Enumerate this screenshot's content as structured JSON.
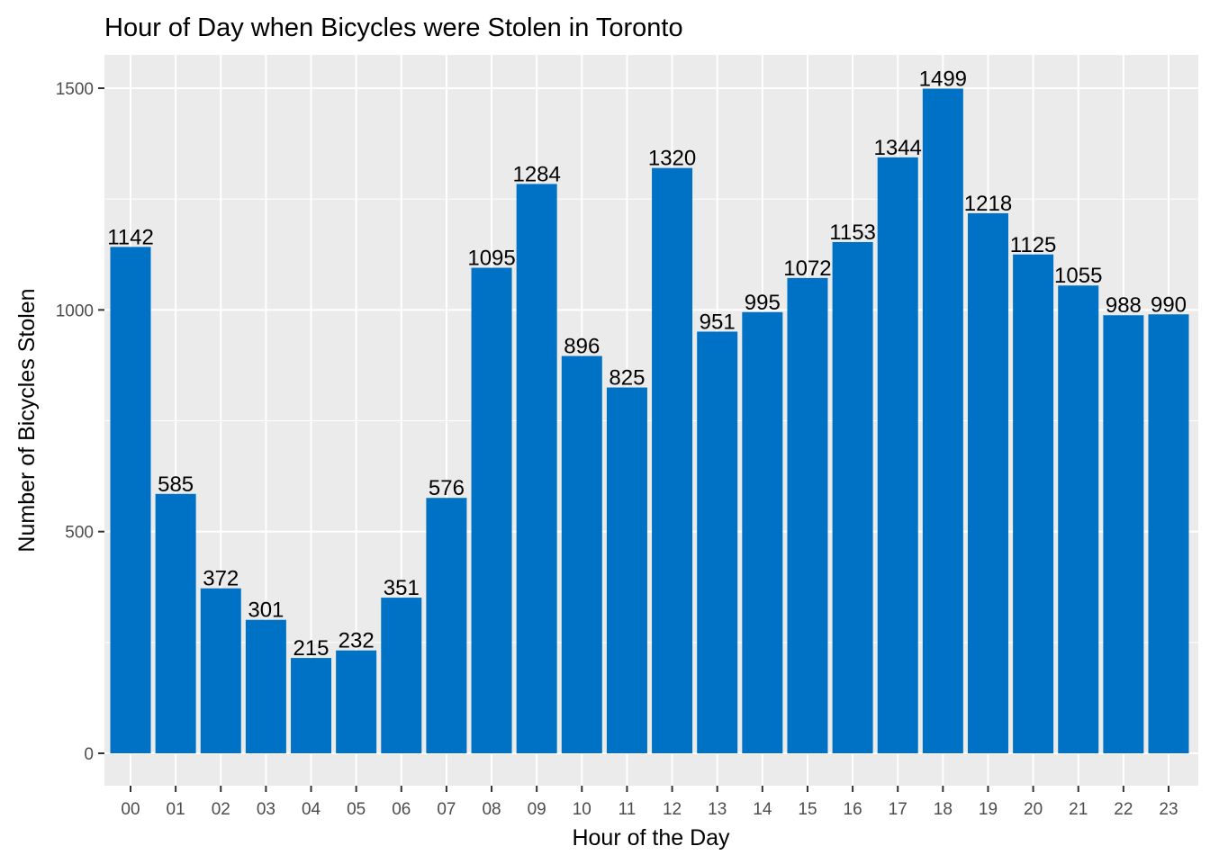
{
  "chart_data": {
    "type": "bar",
    "title": "Hour of Day when Bicycles were Stolen in Toronto",
    "xlabel": "Hour of the Day",
    "ylabel": "Number of Bicycles Stolen",
    "categories": [
      "00",
      "01",
      "02",
      "03",
      "04",
      "05",
      "06",
      "07",
      "08",
      "09",
      "10",
      "11",
      "12",
      "13",
      "14",
      "15",
      "16",
      "17",
      "18",
      "19",
      "20",
      "21",
      "22",
      "23"
    ],
    "values": [
      1142,
      585,
      372,
      301,
      215,
      232,
      351,
      576,
      1095,
      1284,
      896,
      825,
      1320,
      951,
      995,
      1072,
      1153,
      1344,
      1499,
      1218,
      1125,
      1055,
      988,
      990
    ],
    "data_labels": [
      "1142",
      "585",
      "372",
      "301",
      "215",
      "232",
      "351",
      "576",
      "1095",
      "1284",
      "896",
      "825",
      "1320",
      "951",
      "995",
      "1072",
      "1153",
      "1344",
      "1499",
      "1218",
      "1125",
      "1055",
      "988",
      "990"
    ],
    "ylim": [
      0,
      1574.95
    ],
    "yticks": [
      0,
      500,
      1000,
      1500
    ],
    "ytick_labels": [
      "0",
      "500",
      "1000",
      "1500"
    ],
    "grid": true,
    "legend": "none",
    "colors": {
      "bar": "#0072C6",
      "panel": "#EBEBEB",
      "grid": "#FFFFFF",
      "tick_text": "#4D4D4D",
      "tick_mark": "#333333",
      "text": "#000000"
    }
  }
}
